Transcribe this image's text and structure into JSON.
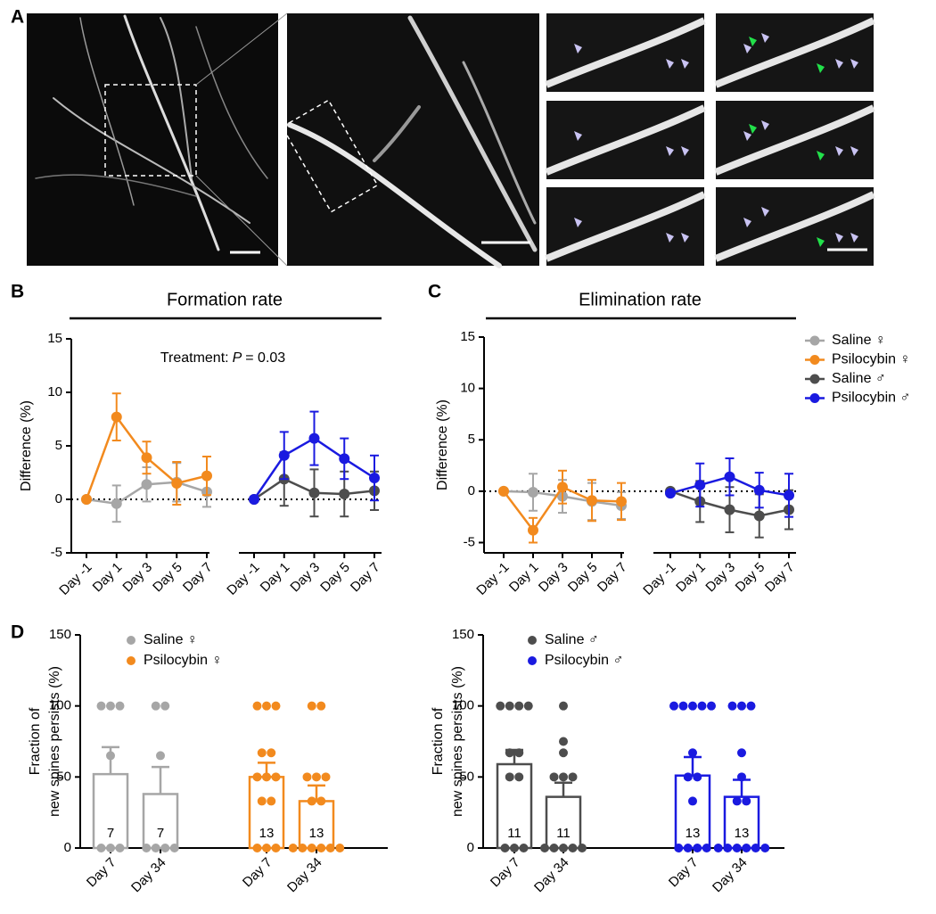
{
  "panel_labels": [
    "A",
    "B",
    "C",
    "D"
  ],
  "chart_data": [
    {
      "type": "line",
      "title": "Formation rate",
      "annotation": [
        "Treatment:",
        "P",
        "= 0.03"
      ],
      "y_label": "Difference (%)",
      "categories": [
        "Day -1",
        "Day 1",
        "Day 3",
        "Day 5",
        "Day 7"
      ],
      "ylim": [
        -5,
        15
      ],
      "yticks": [
        -5,
        0,
        5,
        10,
        15
      ],
      "zero_line": true,
      "series": [
        {
          "color": "#a6a6a6",
          "values": [
            0,
            -0.4,
            1.4,
            1.6,
            0.7
          ],
          "errors": [
            0,
            1.7,
            1.6,
            1.8,
            1.4
          ]
        },
        {
          "color": "#f28a1e",
          "values": [
            0,
            7.7,
            3.9,
            1.5,
            2.2
          ],
          "errors": [
            0,
            2.2,
            1.5,
            2.0,
            1.8
          ]
        },
        {
          "color": "#4d4d4d",
          "values": [
            0,
            1.9,
            0.6,
            0.5,
            0.8
          ],
          "errors": [
            0,
            2.5,
            2.2,
            2.1,
            1.8
          ]
        },
        {
          "color": "#1a1ae0",
          "values": [
            0,
            4.1,
            5.7,
            3.8,
            2.0
          ],
          "errors": [
            0,
            2.2,
            2.5,
            1.9,
            2.1
          ]
        }
      ]
    },
    {
      "type": "line",
      "title": "Elimination rate",
      "y_label": "Difference (%)",
      "categories": [
        "Day -1",
        "Day 1",
        "Day 3",
        "Day 5",
        "Day 7"
      ],
      "ylim": [
        -6,
        15
      ],
      "yticks": [
        -5,
        0,
        5,
        10,
        15
      ],
      "zero_line": true,
      "legend": "right",
      "series": [
        {
          "name": "Saline ♀",
          "color": "#a6a6a6",
          "values": [
            0,
            -0.1,
            -0.5,
            -1.0,
            -1.4
          ],
          "errors": [
            0,
            1.8,
            1.6,
            1.8,
            1.3
          ]
        },
        {
          "name": "Psilocybin ♀",
          "color": "#f28a1e",
          "values": [
            0,
            -3.8,
            0.4,
            -0.9,
            -1.0
          ],
          "errors": [
            0,
            1.2,
            1.6,
            2.0,
            1.8
          ]
        },
        {
          "name": "Saline ♂",
          "color": "#4d4d4d",
          "values": [
            0,
            -1.0,
            -1.8,
            -2.4,
            -1.8
          ],
          "errors": [
            0,
            2.0,
            2.2,
            2.1,
            1.9
          ]
        },
        {
          "name": "Psilocybin ♂",
          "color": "#1a1ae0",
          "values": [
            -0.2,
            0.6,
            1.4,
            0.1,
            -0.4
          ],
          "errors": [
            0,
            2.1,
            1.8,
            1.7,
            2.1
          ]
        }
      ]
    },
    {
      "type": "bar",
      "y_label": [
        "Fraction of",
        "new spines persists (%)"
      ],
      "categories": [
        "Day 7",
        "Day 34",
        "Day 7",
        "Day 34"
      ],
      "ylim": [
        0,
        150
      ],
      "yticks": [
        0,
        50,
        100,
        150
      ],
      "legend": "top-left",
      "series": [
        {
          "name": "Saline ♀",
          "color": "#a6a6a6",
          "values": [
            52,
            38,
            null,
            null
          ],
          "errors": [
            19,
            19,
            null,
            null
          ],
          "n": [
            7,
            7,
            null,
            null
          ],
          "points": [
            [
              100,
              100,
              100,
              65,
              0,
              0,
              0
            ],
            [
              100,
              100,
              65,
              0,
              0,
              0,
              0
            ],
            null,
            null
          ]
        },
        {
          "name": "Psilocybin ♀",
          "color": "#f28a1e",
          "values": [
            null,
            null,
            50,
            33
          ],
          "errors": [
            null,
            null,
            10,
            11
          ],
          "n": [
            null,
            null,
            13,
            13
          ],
          "points": [
            null,
            null,
            [
              100,
              100,
              100,
              67,
              67,
              50,
              50,
              50,
              33,
              33,
              0,
              0,
              0
            ],
            [
              100,
              100,
              50,
              50,
              50,
              33,
              33,
              0,
              0,
              0,
              0,
              0,
              0
            ]
          ]
        }
      ]
    },
    {
      "type": "bar",
      "y_label": [
        "Fraction of",
        "new spines persists (%)"
      ],
      "categories": [
        "Day 7",
        "Day 34",
        "Day 7",
        "Day 34"
      ],
      "ylim": [
        0,
        150
      ],
      "yticks": [
        0,
        50,
        100,
        150
      ],
      "legend": "top-left",
      "series": [
        {
          "name": "Saline ♂",
          "color": "#4d4d4d",
          "values": [
            59,
            36,
            null,
            null
          ],
          "errors": [
            10,
            10,
            null,
            null
          ],
          "n": [
            11,
            11,
            null,
            null
          ],
          "points": [
            [
              100,
              100,
              100,
              100,
              67,
              67,
              50,
              50,
              0,
              0,
              0
            ],
            [
              100,
              75,
              67,
              50,
              50,
              50,
              0,
              0,
              0,
              0,
              0
            ],
            null,
            null
          ]
        },
        {
          "name": "Psilocybin ♂",
          "color": "#1a1ae0",
          "values": [
            null,
            null,
            51,
            36
          ],
          "errors": [
            null,
            null,
            13,
            12
          ],
          "n": [
            null,
            null,
            13,
            13
          ],
          "points": [
            null,
            null,
            [
              100,
              100,
              100,
              100,
              100,
              67,
              50,
              50,
              33,
              0,
              0,
              0,
              0
            ],
            [
              100,
              100,
              100,
              67,
              50,
              33,
              33,
              0,
              0,
              0,
              0,
              0,
              0
            ]
          ]
        }
      ]
    }
  ]
}
